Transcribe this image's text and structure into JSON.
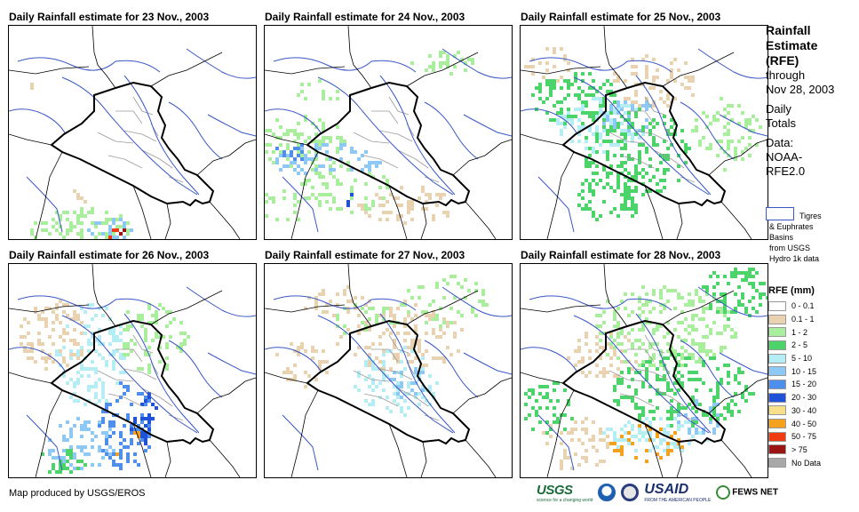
{
  "panels": [
    {
      "title": "Daily Rainfall estimate for 23 Nov., 2003",
      "day": 23
    },
    {
      "title": "Daily Rainfall estimate for 24 Nov., 2003",
      "day": 24
    },
    {
      "title": "Daily Rainfall estimate for 25 Nov., 2003",
      "day": 25
    },
    {
      "title": "Daily Rainfall estimate for 26 Nov., 2003",
      "day": 26
    },
    {
      "title": "Daily Rainfall estimate for 27 Nov., 2003",
      "day": 27
    },
    {
      "title": "Daily Rainfall estimate for 28 Nov., 2003",
      "day": 28
    }
  ],
  "legend": {
    "title_lines": [
      "Rainfall",
      "Estimate",
      "(RFE)"
    ],
    "through": "through",
    "date": "Nov 28, 2003",
    "daily": "Daily",
    "totals": "Totals",
    "data_label": "Data:",
    "source_1": "NOAA-",
    "source_2": "RFE2.0",
    "basin_lines": [
      "Tigres",
      "& Euphrates",
      "Basins",
      "from USGS",
      "Hydro 1k data"
    ],
    "rfe_heading": "RFE (mm)",
    "scale": [
      {
        "label": "0 - 0.1",
        "color": "#ffffff"
      },
      {
        "label": "0.1 - 1",
        "color": "#e8d2b0"
      },
      {
        "label": "1 - 2",
        "color": "#a8ee9c"
      },
      {
        "label": "2 - 5",
        "color": "#4cd36a"
      },
      {
        "label": "5 - 10",
        "color": "#b4eef4"
      },
      {
        "label": "10 - 15",
        "color": "#8ec8f4"
      },
      {
        "label": "15 - 20",
        "color": "#4f8fec"
      },
      {
        "label": "20 - 30",
        "color": "#1f52d6"
      },
      {
        "label": "30 - 40",
        "color": "#f6e08a"
      },
      {
        "label": "40 - 50",
        "color": "#f4a21e"
      },
      {
        "label": "50 - 75",
        "color": "#f03a12"
      },
      {
        "label": "> 75",
        "color": "#9a1414"
      },
      {
        "label": "No Data",
        "color": "#a8a8a8"
      }
    ]
  },
  "footer": {
    "credit": "Map produced by USGS/EROS",
    "logo_usgs": "USGS",
    "logo_usgs_tag": "science for a changing world",
    "logo_usaid": "USAID",
    "logo_usaid_tag": "FROM THE AMERICAN PEOPLE",
    "logo_fews": "FEWS NET"
  },
  "colors": {
    "border": "#000000",
    "river": "#3a57c4",
    "province": "#9a9a9a"
  }
}
